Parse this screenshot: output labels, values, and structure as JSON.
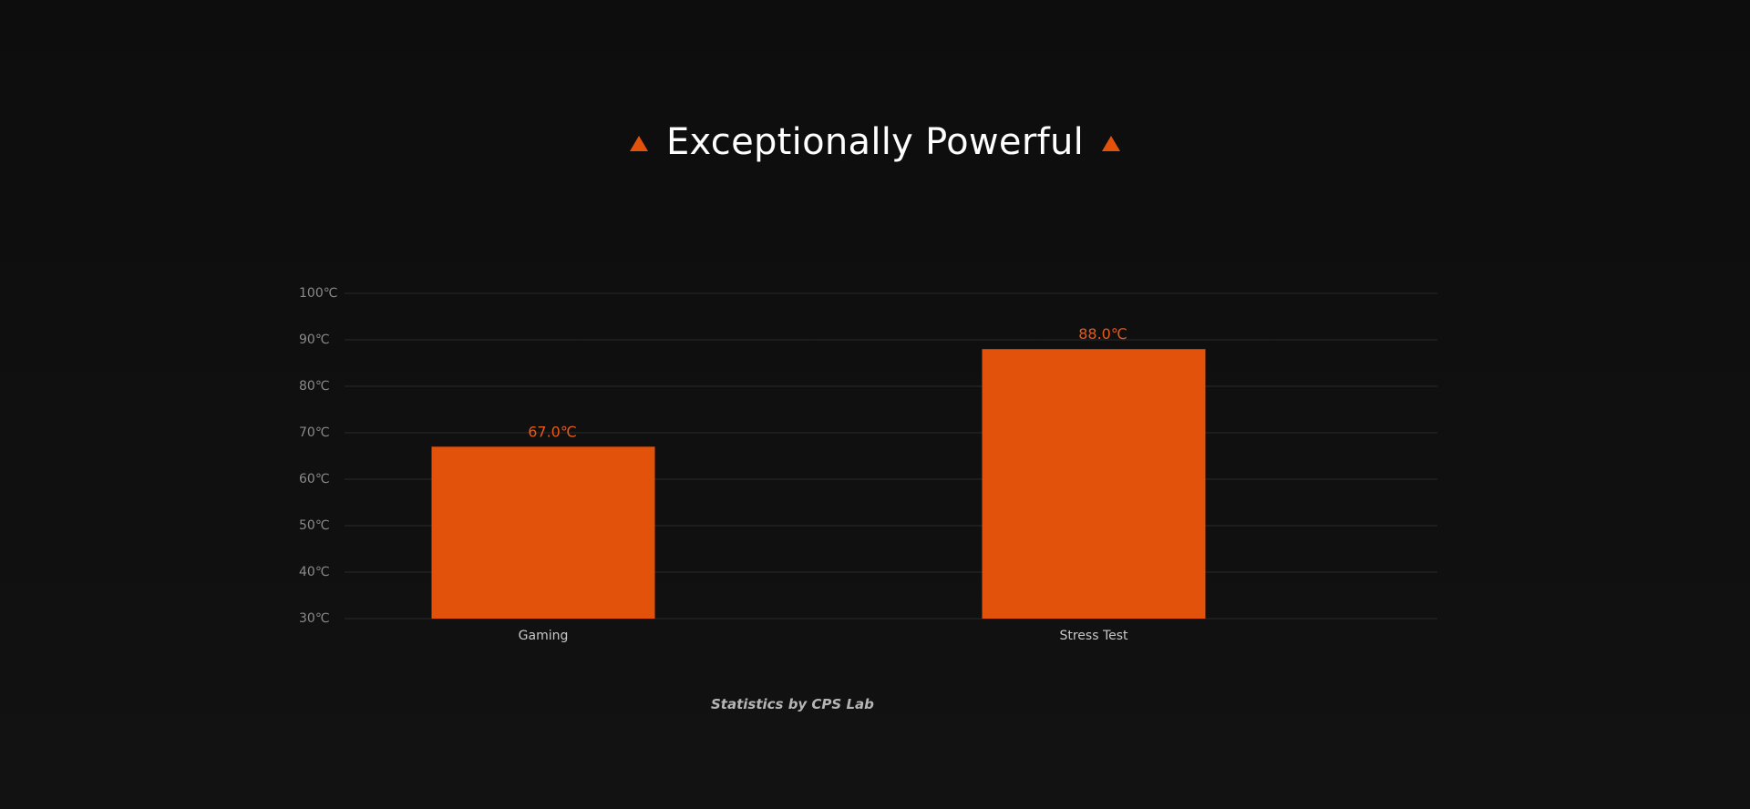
{
  "header": {
    "title": "Exceptionally Powerful",
    "left_icon": "triangle-up-icon",
    "right_icon": "triangle-up-icon",
    "accent_color": "#e2520b"
  },
  "chart_data": {
    "type": "bar",
    "categories": [
      "Gaming",
      "Stress Test"
    ],
    "values": [
      67.0,
      88.0
    ],
    "data_labels": [
      "67.0℃",
      "88.0℃"
    ],
    "ylim": [
      30,
      100
    ],
    "y_ticks": [
      30,
      40,
      50,
      60,
      70,
      80,
      90,
      100
    ],
    "y_tick_labels": [
      "30℃",
      "40℃",
      "50℃",
      "60℃",
      "70℃",
      "80℃",
      "90℃",
      "100℃"
    ],
    "grid": true,
    "bar_color": "#e2520b",
    "label_color": "#e8591a",
    "grid_color": "#2a2a2a",
    "tick_color": "#8a8a8a",
    "category_color": "#c8c8c8"
  },
  "footer": {
    "credit": "Statistics by CPS Lab"
  }
}
